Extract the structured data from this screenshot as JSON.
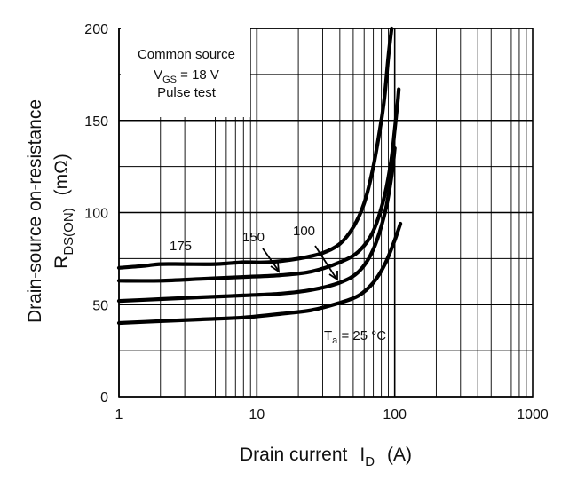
{
  "chart_data": {
    "type": "line",
    "xlabel": "Drain current",
    "xlabel_symbol": "I",
    "xlabel_subscript": "D",
    "xlabel_unit": "(A)",
    "ylabel": "Drain-source on-resistance",
    "ylabel_symbol": "R",
    "ylabel_subscript": "DS(ON)",
    "ylabel_unit": "(mΩ)",
    "xscale": "log",
    "xlim": [
      1,
      1000
    ],
    "ylim": [
      0,
      200
    ],
    "xticks": [
      1,
      10,
      100,
      1000
    ],
    "xtick_labels": [
      "1",
      "10",
      "100",
      "1000"
    ],
    "yticks": [
      0,
      50,
      100,
      150,
      200
    ],
    "ytick_labels": [
      "0",
      "50",
      "100",
      "150",
      "200"
    ],
    "grid": true,
    "annotation": {
      "line1": "Common source",
      "line2_symbol": "V",
      "line2_subscript": "GS",
      "line2_value": " = 18 V",
      "line3": "Pulse test"
    },
    "series": [
      {
        "name": "175",
        "label_symbol": "",
        "label_subscript": "",
        "label_value": "175",
        "x": [
          1,
          1.5,
          2,
          3,
          5,
          8,
          12,
          20,
          30,
          40,
          50,
          60,
          70,
          80,
          85,
          90,
          95
        ],
        "y": [
          70,
          71,
          72,
          72,
          72,
          73,
          73,
          75,
          78,
          83,
          92,
          105,
          125,
          150,
          165,
          185,
          200
        ]
      },
      {
        "name": "150",
        "label_symbol": "",
        "label_subscript": "",
        "label_value": "150",
        "x": [
          1,
          2,
          4,
          8,
          15,
          25,
          40,
          55,
          70,
          85,
          95,
          100,
          105,
          107
        ],
        "y": [
          63,
          63,
          64,
          65,
          66,
          68,
          73,
          79,
          90,
          110,
          130,
          145,
          160,
          167
        ]
      },
      {
        "name": "100",
        "label_symbol": "",
        "label_subscript": "",
        "label_value": "100",
        "x": [
          1,
          2,
          4,
          8,
          15,
          25,
          40,
          55,
          70,
          85,
          95,
          100
        ],
        "y": [
          52,
          53,
          54,
          55,
          56,
          58,
          62,
          68,
          80,
          100,
          120,
          135
        ]
      },
      {
        "name": "25",
        "label_symbol": "T",
        "label_subscript": "a",
        "label_value": " = 25 °C",
        "x": [
          1,
          2,
          4,
          8,
          15,
          25,
          40,
          55,
          70,
          85,
          100,
          110
        ],
        "y": [
          40,
          41,
          42,
          43,
          45,
          47,
          51,
          55,
          62,
          72,
          85,
          94
        ]
      }
    ]
  }
}
